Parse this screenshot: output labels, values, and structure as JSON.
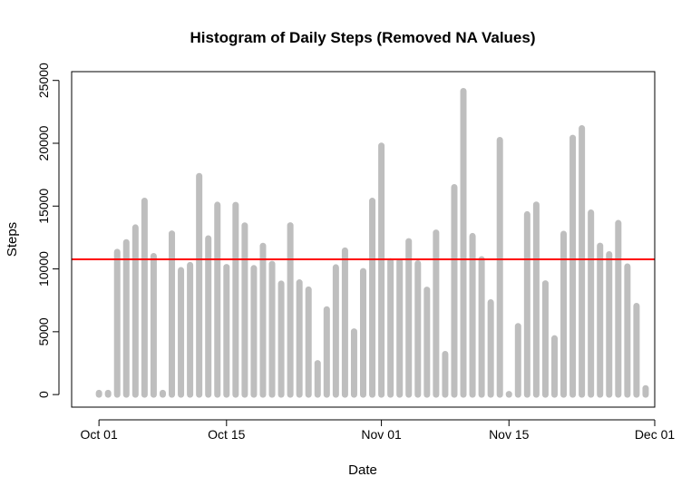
{
  "chart_data": {
    "type": "bar",
    "title": "Histogram of Daily Steps (Removed NA Values)",
    "xlabel": "Date",
    "ylabel": "Steps",
    "ylim": [
      -1000,
      25700
    ],
    "xlim": [
      -3,
      61
    ],
    "x_ticks": [
      {
        "label": "Oct 01",
        "index": 0
      },
      {
        "label": "Oct 15",
        "index": 14
      },
      {
        "label": "Nov 01",
        "index": 31
      },
      {
        "label": "Nov 15",
        "index": 45
      },
      {
        "label": "Dec 01",
        "index": 61
      }
    ],
    "y_ticks": [
      0,
      5000,
      10000,
      15000,
      20000,
      25000
    ],
    "y_tick_labels": [
      "0",
      "5000",
      "10000",
      "15000",
      "20000",
      "25000"
    ],
    "x_start": "2012-10-01",
    "values": [
      126,
      126,
      11352,
      12116,
      13294,
      15420,
      11015,
      126,
      12811,
      9900,
      10304,
      17382,
      12426,
      15098,
      10139,
      15084,
      13452,
      10056,
      11829,
      10395,
      8821,
      13460,
      8918,
      8355,
      2492,
      6778,
      10119,
      11458,
      5018,
      9819,
      15414,
      19800,
      10600,
      10571,
      12200,
      10439,
      8334,
      12883,
      3219,
      16500,
      24150,
      12608,
      10765,
      7336,
      20250,
      41,
      5441,
      14339,
      15110,
      8841,
      4472,
      12787,
      20427,
      21194,
      14478,
      11834,
      11162,
      13646,
      10183,
      7047,
      500
    ],
    "bar_color": "#bebebe",
    "mean_line": {
      "value": 10766,
      "color": "#ff0000"
    }
  }
}
